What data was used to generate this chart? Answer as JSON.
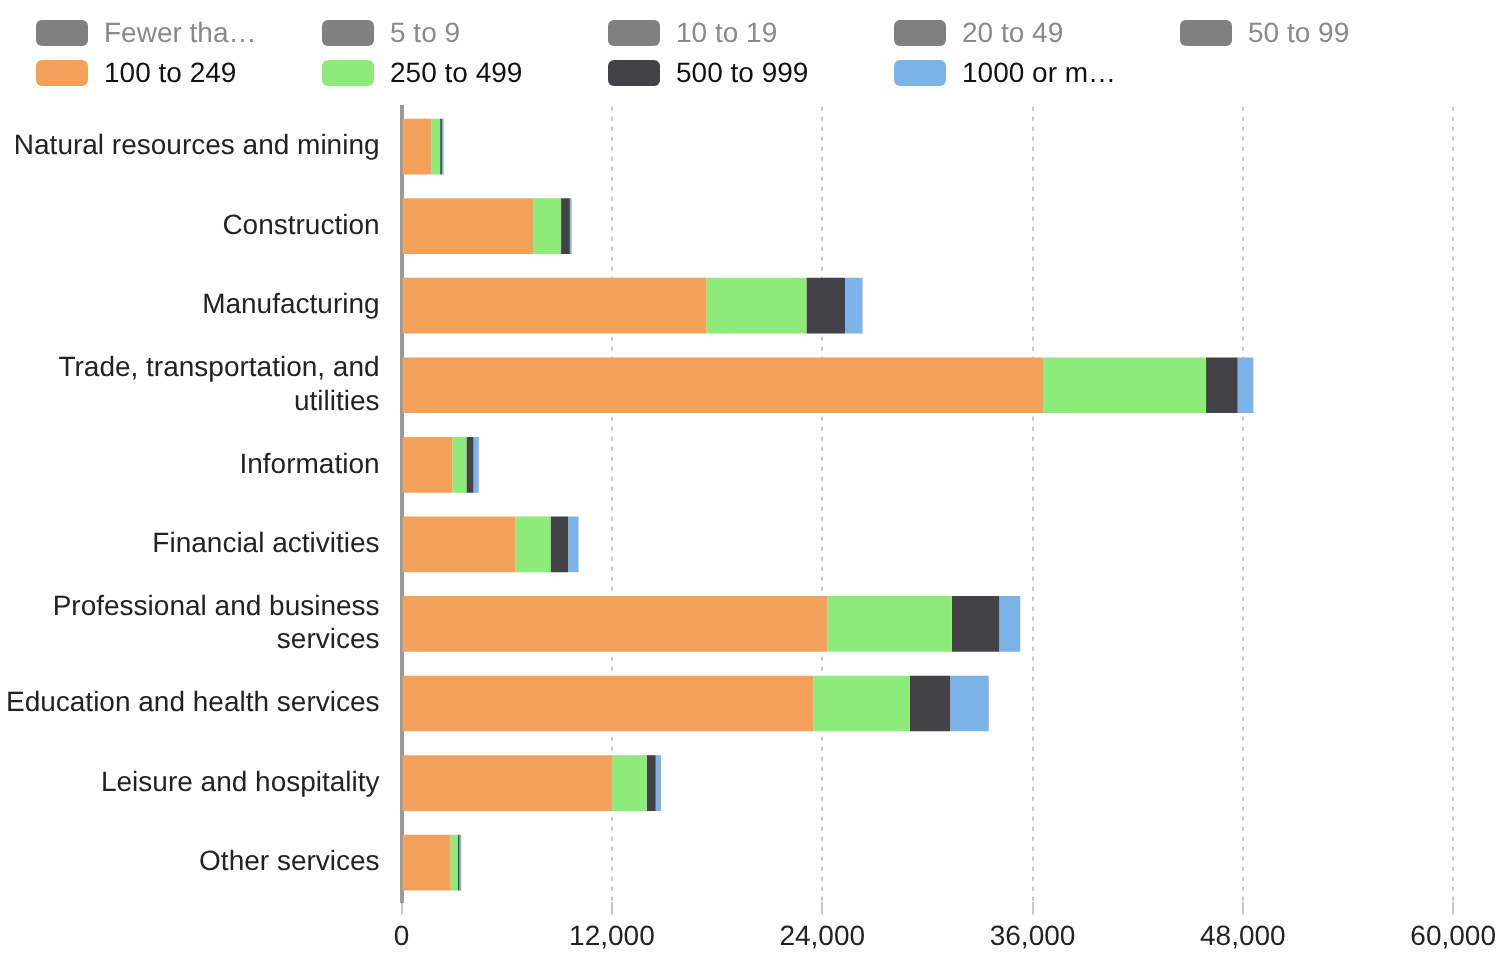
{
  "chart_data": {
    "type": "bar",
    "orientation": "horizontal",
    "stacked": true,
    "categories": [
      "Natural resources and mining",
      "Construction",
      "Manufacturing",
      "Trade, transportation, and utilities",
      "Information",
      "Financial activities",
      "Professional and business services",
      "Education and health services",
      "Leisure and hospitality",
      "Other services"
    ],
    "series": [
      {
        "name": "Fewer tha…",
        "color": "#808080",
        "values": [
          null,
          null,
          null,
          null,
          null,
          null,
          null,
          null,
          null,
          null
        ]
      },
      {
        "name": "5 to 9",
        "color": "#808080",
        "values": [
          null,
          null,
          null,
          null,
          null,
          null,
          null,
          null,
          null,
          null
        ]
      },
      {
        "name": "10 to 19",
        "color": "#808080",
        "values": [
          null,
          null,
          null,
          null,
          null,
          null,
          null,
          null,
          null,
          null
        ]
      },
      {
        "name": "20 to 49",
        "color": "#808080",
        "values": [
          null,
          null,
          null,
          null,
          null,
          null,
          null,
          null,
          null,
          null
        ]
      },
      {
        "name": "50 to 99",
        "color": "#808080",
        "values": [
          null,
          null,
          null,
          null,
          null,
          null,
          null,
          null,
          null,
          null
        ]
      },
      {
        "name": "100 to 249",
        "color": "#f4a15c",
        "values": [
          1700,
          7500,
          17400,
          36600,
          2900,
          6500,
          24300,
          23500,
          12000,
          2800
        ]
      },
      {
        "name": "250 to 499",
        "color": "#8deb7a",
        "values": [
          500,
          1600,
          5700,
          9300,
          800,
          2000,
          7100,
          5500,
          2000,
          400
        ]
      },
      {
        "name": "500 to 999",
        "color": "#424247",
        "values": [
          100,
          500,
          2200,
          1800,
          400,
          1000,
          2700,
          2300,
          500,
          100
        ]
      },
      {
        "name": "1000 or m…",
        "color": "#7cb4ea",
        "values": [
          100,
          100,
          1000,
          900,
          300,
          600,
          1200,
          2200,
          300,
          100
        ]
      }
    ],
    "xlim": [
      0,
      60000
    ],
    "xticks": [
      0,
      {
        "value": 12000,
        "label": "12,000"
      },
      {
        "value": 24000,
        "label": "24,000"
      },
      {
        "value": 36000,
        "label": "36,000"
      },
      {
        "value": 48000,
        "label": "48,000"
      },
      {
        "value": 60000,
        "label": "60,000"
      }
    ],
    "grid": "x",
    "legend": "top"
  }
}
